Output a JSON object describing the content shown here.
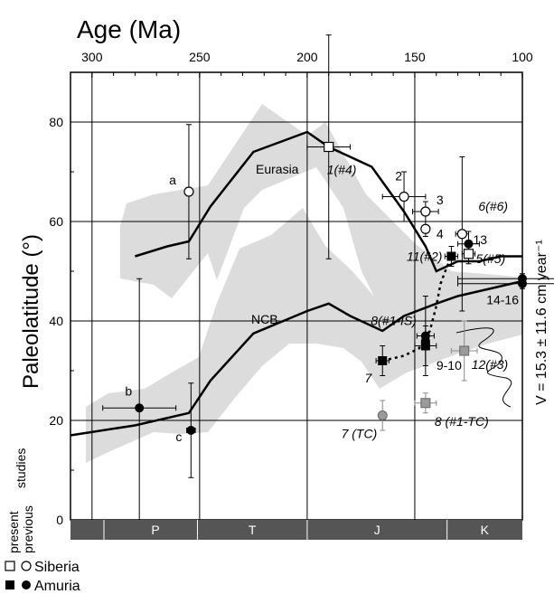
{
  "chart_data": {
    "type": "scatter",
    "xlabel": "Age (Ma)",
    "ylabel": "Paleolatitude (°)",
    "xlim": [
      310,
      100
    ],
    "ylim": [
      0,
      90
    ],
    "x_ticks": [
      300,
      250,
      200,
      150,
      100
    ],
    "y_ticks": [
      0,
      20,
      40,
      60,
      80
    ],
    "grid": true,
    "right_label": "V = 15.3 ± 11.6 cm year⁻¹",
    "y_side_labels": {
      "present": "present",
      "previous": "previous",
      "studies": "studies"
    },
    "periods": [
      {
        "label": "P",
        "from": 290,
        "to": 251
      },
      {
        "label": "T",
        "from": 251,
        "to": 200
      },
      {
        "label": "J",
        "from": 200,
        "to": 135
      },
      {
        "label": "K",
        "from": 135,
        "to": 100
      }
    ],
    "curves": [
      {
        "name": "Eurasia",
        "x": [
          280,
          265,
          255,
          245,
          225,
          200,
          190,
          170,
          155,
          145,
          140,
          130,
          120,
          110,
          100
        ],
        "y": [
          53,
          55,
          56,
          63,
          74,
          78,
          75,
          71,
          62,
          55,
          50,
          52,
          52,
          53,
          53
        ]
      },
      {
        "name": "NCB",
        "x": [
          310,
          280,
          255,
          245,
          225,
          200,
          190,
          180,
          165,
          155,
          140,
          130,
          120,
          110,
          100
        ],
        "y": [
          17,
          19,
          21.5,
          28,
          37.5,
          42,
          43.5,
          41,
          38,
          41,
          43.5,
          45,
          46,
          47,
          48
        ]
      },
      {
        "name": "",
        "x": [
          165,
          155,
          148,
          143,
          140,
          138,
          135,
          132
        ],
        "y": [
          32,
          33,
          34.5,
          38,
          43,
          47.5,
          51,
          53.5
        ]
      }
    ],
    "points": [
      {
        "label": "a",
        "x": 255,
        "y": 66,
        "xerr": 0,
        "yerr": 13.5,
        "group": "Siberia",
        "style": "circle-open"
      },
      {
        "label": "b",
        "x": 278,
        "y": 22.5,
        "xerr": 17,
        "yerr": 26,
        "group": "Amuria",
        "style": "circle-filled"
      },
      {
        "label": "c",
        "x": 254,
        "y": 18,
        "xerr": 2,
        "yerr": 9.5,
        "group": "Amuria",
        "style": "circle-filled"
      },
      {
        "label": "1(#4)",
        "x": 190,
        "y": 75,
        "xerr": 10,
        "yerr": 22.5,
        "group": "Siberia",
        "style": "square-open"
      },
      {
        "label": "2",
        "x": 155,
        "y": 65,
        "xerr": 10,
        "yerr": 5,
        "group": "Siberia",
        "style": "circle-open"
      },
      {
        "label": "3",
        "x": 145,
        "y": 62,
        "xerr": 6,
        "yerr": 2,
        "group": "Siberia",
        "style": "circle-open"
      },
      {
        "label": "4",
        "x": 145,
        "y": 58.5,
        "xerr": 0,
        "yerr": 1.5,
        "group": "Siberia",
        "style": "circle-open"
      },
      {
        "label": "6(#6)",
        "x": 128,
        "y": 57.5,
        "xerr": 3,
        "yerr": 15.5,
        "group": "Siberia",
        "style": "circle-open"
      },
      {
        "label": "13",
        "x": 125,
        "y": 55.5,
        "xerr": 5,
        "yerr": 2.5,
        "group": "Amuria",
        "style": "circle-filled"
      },
      {
        "label": "11(#2)",
        "x": 133,
        "y": 53,
        "xerr": 3,
        "yerr": 2,
        "group": "Amuria",
        "style": "square-filled"
      },
      {
        "label": "5(#5)",
        "x": 125,
        "y": 53.5,
        "xerr": 3,
        "yerr": 2,
        "group": "Siberia",
        "style": "square-open"
      },
      {
        "label": "14-16",
        "x": 100,
        "y": 48.5,
        "xerr": 30,
        "yerr": 1,
        "group": "Amuria",
        "style": "circle-filled"
      },
      {
        "label": "",
        "x": 100,
        "y": 47.5,
        "xerr": 30,
        "yerr": 1,
        "group": "Amuria",
        "style": "circle-filled"
      },
      {
        "label": "8(#1-IS)",
        "x": 145,
        "y": 37,
        "xerr": 4,
        "yerr": 8,
        "group": "Amuria",
        "style": "circle-filled"
      },
      {
        "label": "",
        "x": 145,
        "y": 35,
        "xerr": 5,
        "yerr": 4,
        "group": "Amuria",
        "style": "square-filled"
      },
      {
        "label": "9-10",
        "x": 145,
        "y": 36,
        "xerr": 0,
        "yerr": 0,
        "group": "Amuria",
        "style": "circle-filled"
      },
      {
        "label": "7",
        "x": 165,
        "y": 32,
        "xerr": 3,
        "yerr": 3,
        "group": "Amuria",
        "style": "square-filled"
      },
      {
        "label": "12(#3)",
        "x": 127,
        "y": 34,
        "xerr": 6,
        "yerr": 6,
        "group": "Siberia",
        "style": "square-gray"
      },
      {
        "label": "8 (#1-TC)",
        "x": 145,
        "y": 23.5,
        "xerr": 5,
        "yerr": 2,
        "group": "Amuria",
        "style": "square-gray"
      },
      {
        "label": "7 (TC)",
        "x": 165,
        "y": 21,
        "xerr": 0,
        "yerr": 3,
        "group": "Amuria",
        "style": "circle-gray"
      }
    ],
    "legend": [
      {
        "label": "Siberia",
        "styles": [
          "square-open",
          "circle-open"
        ]
      },
      {
        "label": "Amuria",
        "styles": [
          "square-filled",
          "circle-filled"
        ]
      }
    ],
    "colors": {
      "band": "#dcdcdc",
      "gray_marker": "#9a9a9a",
      "bar": "#555555"
    }
  }
}
